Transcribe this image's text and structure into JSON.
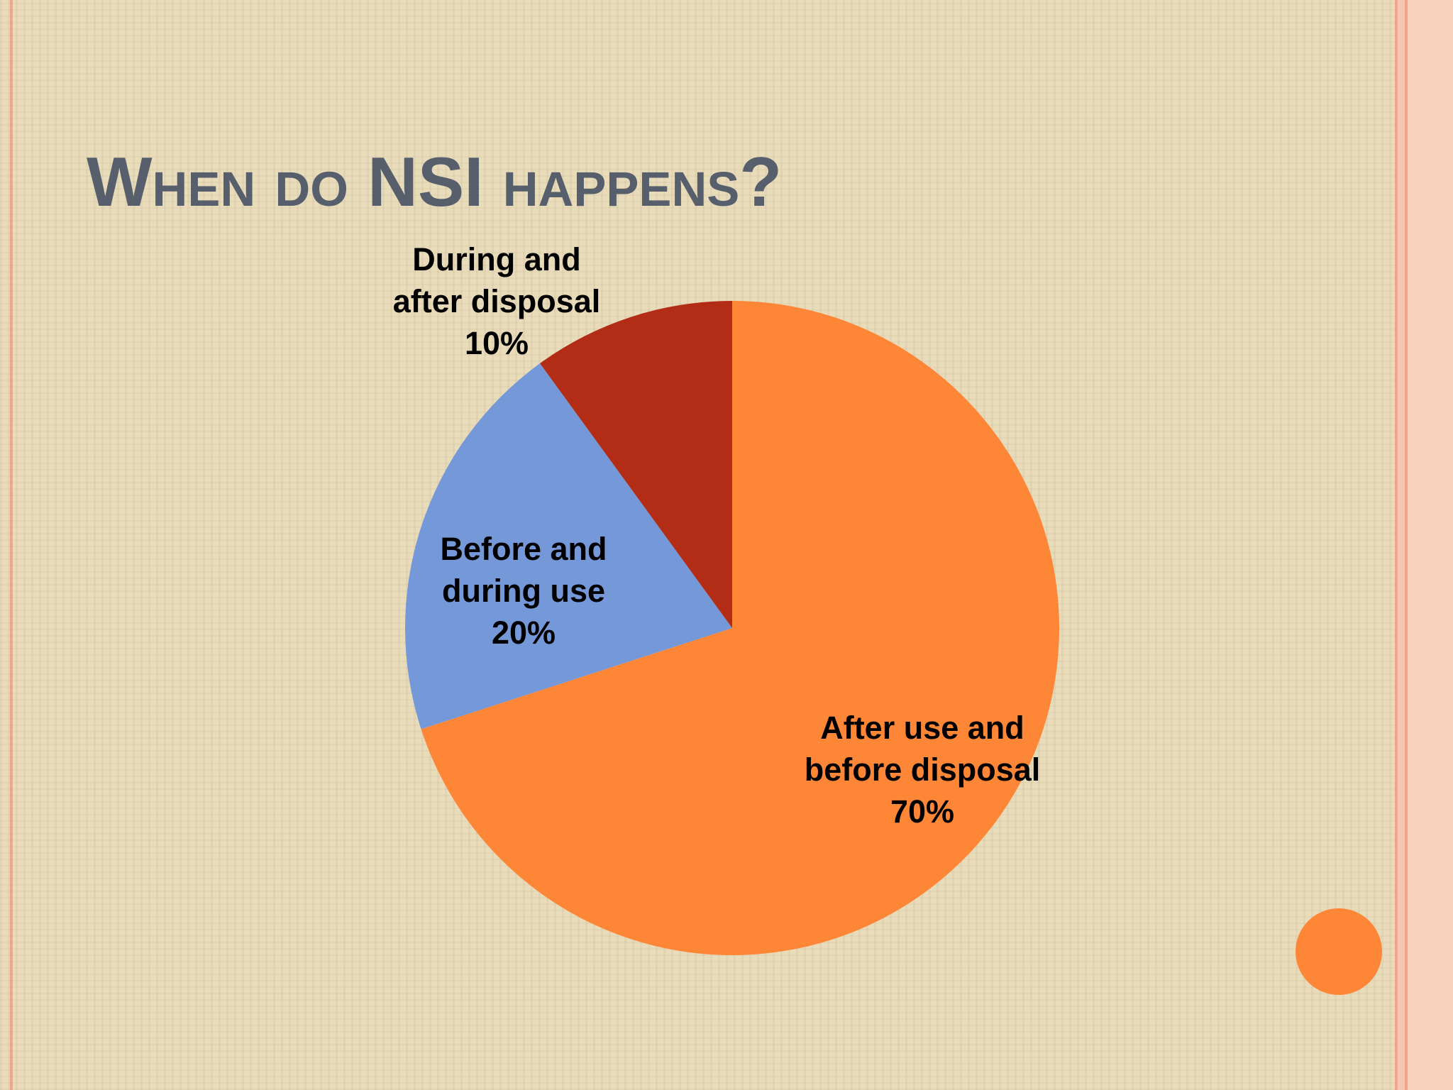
{
  "title": "When do NSI happens?",
  "chart_data": {
    "type": "pie",
    "categories": [
      "After use and before disposal",
      "Before and during use",
      "During and after disposal"
    ],
    "values": [
      70,
      20,
      10
    ],
    "value_labels": [
      "70%",
      "20%",
      "10%"
    ],
    "colors": [
      "#fe8637",
      "#7598d9",
      "#b32c16"
    ]
  }
}
